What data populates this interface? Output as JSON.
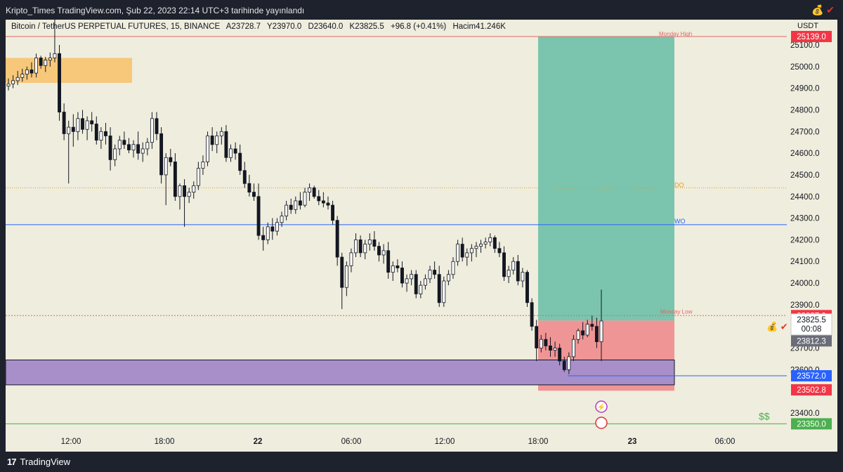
{
  "header": {
    "published": "Kripto_Times TradingView.com, Şub 22, 2023 22:14 UTC+3 tarihinde yayınlandı"
  },
  "legend": {
    "symbol": "Bitcoin / TetherUS PERPETUAL FUTURES, 15, BINANCE",
    "open": "A23728.7",
    "high": "Y23970.0",
    "low": "D23640.0",
    "close": "K23825.5",
    "change": "+96.8 (+0.41%)",
    "volume": "Hacim41.246K"
  },
  "price_axis": {
    "currency": "USDT",
    "ticks": [
      "25100.0",
      "25000.0",
      "24900.0",
      "24800.0",
      "24700.0",
      "24600.0",
      "24500.0",
      "24400.0",
      "24300.0",
      "24200.0",
      "24100.0",
      "24000.0",
      "23900.0",
      "23700.0",
      "23600.0",
      "23400.0"
    ],
    "badges": {
      "monday_high": "25139.0",
      "stop": "23827.0",
      "last_price": "23825.5",
      "countdown": "00:08",
      "current": "23812.3",
      "wo_level": "23572.0",
      "sl_level": "23502.8",
      "bottom_level": "23350.0"
    }
  },
  "time_axis": {
    "labels": [
      "12:00",
      "18:00",
      "22",
      "06:00",
      "12:00",
      "18:00",
      "23",
      "06:00"
    ]
  },
  "annotations": {
    "monday_high": "Monday High",
    "monday_low": "Monday Low",
    "do": "DO",
    "wo": "WO",
    "dollar_signs": "$$"
  },
  "colors": {
    "chart_bg": "#efeddd",
    "profit_zone": "#7bc5ae",
    "loss_zone": "#f09595",
    "orange_box": "#f7c77a",
    "purple_box": "#a88fc9",
    "red_line": "#e06666",
    "blue_line": "#2962ff",
    "orange_line": "#e69a22",
    "green_line": "#4caf50",
    "badge_red": "#f23645",
    "badge_blue": "#2962ff",
    "badge_gray": "#6a6d78",
    "badge_green": "#4caf50"
  },
  "footer": {
    "brand": "TradingView"
  },
  "chart_data": {
    "type": "candlestick",
    "title": "Bitcoin / TetherUS PERPETUAL FUTURES, 15, BINANCE",
    "ylim": [
      23290,
      25240
    ],
    "levels": {
      "monday_high": 25139,
      "do": 24440,
      "wo": 24270,
      "monday_low": 23850,
      "wo_low": 23572,
      "bottom": 23350
    },
    "zones": {
      "orange": {
        "low": 24925,
        "high": 25040
      },
      "purple": {
        "low": 23530,
        "high": 23645
      },
      "profit": {
        "low": 23827,
        "high": 25139
      },
      "loss": {
        "low": 23502.8,
        "high": 23827
      }
    },
    "candles": [
      [
        24910,
        24945,
        24890,
        24920
      ],
      [
        24920,
        24960,
        24900,
        24935
      ],
      [
        24935,
        24980,
        24915,
        24950
      ],
      [
        24950,
        24990,
        24930,
        24965
      ],
      [
        24965,
        25000,
        24940,
        24985
      ],
      [
        24985,
        25020,
        24950,
        24970
      ],
      [
        24970,
        25060,
        24950,
        25040
      ],
      [
        25040,
        25050,
        24990,
        25005
      ],
      [
        25005,
        25045,
        24975,
        25030
      ],
      [
        25030,
        25065,
        25000,
        25040
      ],
      [
        25040,
        25240,
        25020,
        25060
      ],
      [
        25060,
        25100,
        24750,
        24790
      ],
      [
        24790,
        24830,
        24660,
        24690
      ],
      [
        24690,
        24750,
        24460,
        24720
      ],
      [
        24720,
        24780,
        24630,
        24700
      ],
      [
        24700,
        24790,
        24660,
        24760
      ],
      [
        24760,
        24800,
        24690,
        24710
      ],
      [
        24710,
        24770,
        24660,
        24750
      ],
      [
        24750,
        24790,
        24700,
        24735
      ],
      [
        24735,
        24770,
        24640,
        24660
      ],
      [
        24660,
        24720,
        24620,
        24700
      ],
      [
        24700,
        24740,
        24640,
        24680
      ],
      [
        24680,
        24720,
        24520,
        24570
      ],
      [
        24570,
        24640,
        24540,
        24620
      ],
      [
        24620,
        24680,
        24590,
        24660
      ],
      [
        24660,
        24700,
        24620,
        24640
      ],
      [
        24640,
        24670,
        24600,
        24615
      ],
      [
        24615,
        24660,
        24580,
        24640
      ],
      [
        24640,
        24700,
        24570,
        24600
      ],
      [
        24600,
        24650,
        24560,
        24620
      ],
      [
        24620,
        24670,
        24590,
        24650
      ],
      [
        24650,
        24790,
        24620,
        24760
      ],
      [
        24760,
        24790,
        24660,
        24690
      ],
      [
        24690,
        24720,
        24460,
        24500
      ],
      [
        24500,
        24600,
        24360,
        24580
      ],
      [
        24580,
        24620,
        24540,
        24560
      ],
      [
        24560,
        24600,
        24380,
        24400
      ],
      [
        24400,
        24460,
        24340,
        24450
      ],
      [
        24450,
        24480,
        24260,
        24400
      ],
      [
        24400,
        24440,
        24370,
        24420
      ],
      [
        24420,
        24470,
        24390,
        24450
      ],
      [
        24450,
        24560,
        24430,
        24530
      ],
      [
        24530,
        24590,
        24500,
        24560
      ],
      [
        24560,
        24700,
        24540,
        24680
      ],
      [
        24680,
        24720,
        24610,
        24640
      ],
      [
        24640,
        24700,
        24600,
        24680
      ],
      [
        24680,
        24720,
        24640,
        24700
      ],
      [
        24700,
        24730,
        24560,
        24580
      ],
      [
        24580,
        24640,
        24560,
        24620
      ],
      [
        24620,
        24650,
        24570,
        24600
      ],
      [
        24600,
        24640,
        24500,
        24520
      ],
      [
        24520,
        24560,
        24440,
        24460
      ],
      [
        24460,
        24500,
        24400,
        24420
      ],
      [
        24420,
        24460,
        24380,
        24400
      ],
      [
        24400,
        24460,
        24200,
        24220
      ],
      [
        24220,
        24260,
        24150,
        24200
      ],
      [
        24200,
        24280,
        24180,
        24260
      ],
      [
        24260,
        24300,
        24200,
        24240
      ],
      [
        24240,
        24300,
        24220,
        24280
      ],
      [
        24280,
        24330,
        24260,
        24310
      ],
      [
        24310,
        24380,
        24290,
        24360
      ],
      [
        24360,
        24390,
        24320,
        24340
      ],
      [
        24340,
        24400,
        24320,
        24380
      ],
      [
        24380,
        24420,
        24340,
        24360
      ],
      [
        24360,
        24440,
        24350,
        24420
      ],
      [
        24420,
        24460,
        24380,
        24440
      ],
      [
        24440,
        24450,
        24390,
        24400
      ],
      [
        24400,
        24430,
        24360,
        24380
      ],
      [
        24380,
        24420,
        24350,
        24370
      ],
      [
        24370,
        24400,
        24340,
        24360
      ],
      [
        24360,
        24380,
        24270,
        24290
      ],
      [
        24290,
        24310,
        24080,
        24120
      ],
      [
        24120,
        24140,
        23880,
        23980
      ],
      [
        23980,
        24100,
        23940,
        24080
      ],
      [
        24080,
        24160,
        24050,
        24140
      ],
      [
        24140,
        24230,
        24120,
        24200
      ],
      [
        24200,
        24220,
        24120,
        24140
      ],
      [
        24140,
        24200,
        24110,
        24180
      ],
      [
        24180,
        24230,
        24150,
        24200
      ],
      [
        24200,
        24240,
        24150,
        24170
      ],
      [
        24170,
        24190,
        24100,
        24130
      ],
      [
        24130,
        24180,
        24090,
        24150
      ],
      [
        24150,
        24190,
        24020,
        24050
      ],
      [
        24050,
        24100,
        24010,
        24080
      ],
      [
        24080,
        24110,
        24050,
        24070
      ],
      [
        24070,
        24100,
        23980,
        24000
      ],
      [
        24000,
        24040,
        23960,
        24020
      ],
      [
        24020,
        24060,
        23990,
        24040
      ],
      [
        24040,
        24060,
        23930,
        23950
      ],
      [
        23950,
        24010,
        23930,
        23990
      ],
      [
        23990,
        24040,
        23970,
        24020
      ],
      [
        24020,
        24080,
        24000,
        24060
      ],
      [
        24060,
        24100,
        24020,
        24040
      ],
      [
        24040,
        24080,
        23890,
        23910
      ],
      [
        23910,
        24030,
        23890,
        24010
      ],
      [
        24010,
        24060,
        23990,
        24040
      ],
      [
        24040,
        24120,
        24020,
        24100
      ],
      [
        24100,
        24200,
        24080,
        24180
      ],
      [
        24180,
        24210,
        24100,
        24120
      ],
      [
        24120,
        24160,
        24080,
        24140
      ],
      [
        24140,
        24180,
        24100,
        24160
      ],
      [
        24160,
        24190,
        24120,
        24170
      ],
      [
        24170,
        24200,
        24140,
        24180
      ],
      [
        24180,
        24210,
        24160,
        24190
      ],
      [
        24190,
        24230,
        24170,
        24210
      ],
      [
        24210,
        24220,
        24140,
        24160
      ],
      [
        24160,
        24190,
        24120,
        24140
      ],
      [
        24140,
        24170,
        24010,
        24030
      ],
      [
        24030,
        24080,
        24000,
        24060
      ],
      [
        24060,
        24120,
        24040,
        24100
      ],
      [
        24100,
        24130,
        23990,
        24010
      ],
      [
        24010,
        24070,
        23980,
        24050
      ],
      [
        24050,
        24060,
        23890,
        23910
      ],
      [
        23910,
        23930,
        23780,
        23800
      ],
      [
        23800,
        23830,
        23640,
        23700
      ],
      [
        23700,
        23760,
        23680,
        23740
      ],
      [
        23740,
        23770,
        23690,
        23710
      ],
      [
        23710,
        23750,
        23660,
        23690
      ],
      [
        23690,
        23730,
        23660,
        23700
      ],
      [
        23700,
        23720,
        23620,
        23640
      ],
      [
        23640,
        23660,
        23590,
        23600
      ],
      [
        23600,
        23680,
        23580,
        23660
      ],
      [
        23660,
        23760,
        23640,
        23740
      ],
      [
        23740,
        23790,
        23720,
        23780
      ],
      [
        23780,
        23820,
        23740,
        23760
      ],
      [
        23760,
        23830,
        23750,
        23810
      ],
      [
        23810,
        23850,
        23780,
        23800
      ],
      [
        23800,
        23840,
        23700,
        23729
      ],
      [
        23729,
        23970,
        23640,
        23825
      ]
    ]
  }
}
